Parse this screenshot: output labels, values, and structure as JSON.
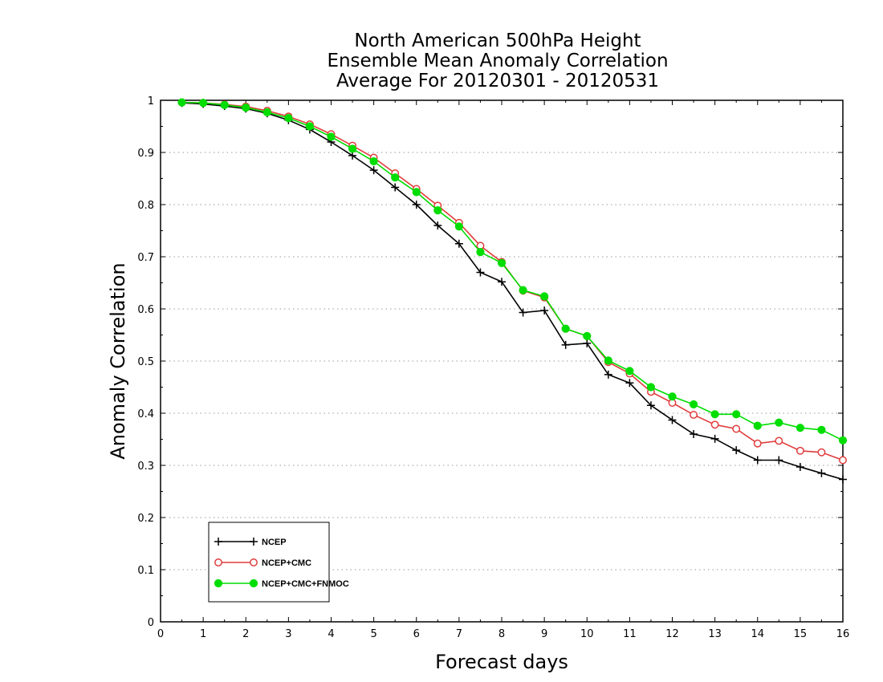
{
  "chart_data": {
    "type": "line",
    "title": [
      "North American 500hPa Height",
      "Ensemble Mean Anomaly Correlation",
      "Average For 20120301 - 20120531"
    ],
    "xlabel": "Forecast days",
    "ylabel": "Anomaly Correlation",
    "xlim": [
      0,
      16
    ],
    "ylim": [
      0,
      1
    ],
    "xticks": [
      "0",
      "1",
      "2",
      "3",
      "4",
      "5",
      "6",
      "7",
      "8",
      "9",
      "10",
      "11",
      "12",
      "13",
      "14",
      "15",
      "16"
    ],
    "yticks": [
      "0",
      "0.1",
      "0.2",
      "0.3",
      "0.4",
      "0.5",
      "0.6",
      "0.7",
      "0.8",
      "0.9",
      "1"
    ],
    "grid": "dotted horizontal",
    "legend_position": "lower-left",
    "x": [
      0.5,
      1,
      1.5,
      2,
      2.5,
      3,
      3.5,
      4,
      4.5,
      5,
      5.5,
      6,
      6.5,
      7,
      7.5,
      8,
      8.5,
      9,
      9.5,
      10,
      10.5,
      11,
      11.5,
      12,
      12.5,
      13,
      13.5,
      14,
      14.5,
      15,
      15.5,
      16
    ],
    "series": [
      {
        "name": "NCEP",
        "color": "#000000",
        "marker": "plus",
        "values": [
          0.995,
          0.993,
          0.989,
          0.984,
          0.975,
          0.962,
          0.944,
          0.92,
          0.894,
          0.866,
          0.833,
          0.8,
          0.76,
          0.725,
          0.67,
          0.652,
          0.593,
          0.597,
          0.531,
          0.534,
          0.474,
          0.458,
          0.415,
          0.387,
          0.36,
          0.351,
          0.329,
          0.31,
          0.31,
          0.297,
          0.285,
          0.273
        ]
      },
      {
        "name": "NCEP+CMC",
        "color": "#e03c3c",
        "marker": "open-circle",
        "values": [
          0.996,
          0.995,
          0.992,
          0.988,
          0.98,
          0.969,
          0.954,
          0.935,
          0.913,
          0.89,
          0.86,
          0.83,
          0.798,
          0.765,
          0.721,
          0.69,
          0.635,
          0.622,
          0.562,
          0.548,
          0.498,
          0.476,
          0.441,
          0.42,
          0.397,
          0.378,
          0.37,
          0.342,
          0.347,
          0.328,
          0.325,
          0.31
        ]
      },
      {
        "name": "NCEP+CMC+FNMOC",
        "color": "#00dd00",
        "marker": "filled-circle",
        "values": [
          0.996,
          0.995,
          0.991,
          0.986,
          0.977,
          0.966,
          0.95,
          0.93,
          0.907,
          0.883,
          0.852,
          0.824,
          0.789,
          0.758,
          0.709,
          0.688,
          0.636,
          0.624,
          0.562,
          0.548,
          0.501,
          0.481,
          0.45,
          0.432,
          0.417,
          0.398,
          0.398,
          0.376,
          0.382,
          0.372,
          0.368,
          0.348
        ]
      }
    ]
  }
}
